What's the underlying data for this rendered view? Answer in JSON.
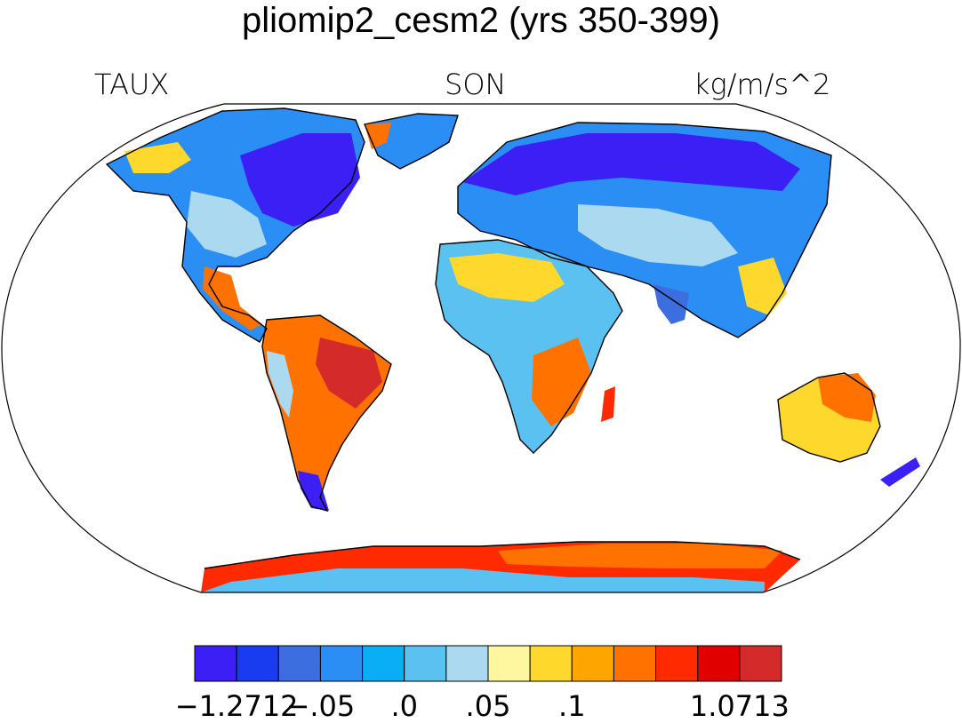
{
  "title": "pliomip2_cesm2 (yrs 350-399)",
  "left_label": "TAUX",
  "center_label": "SON",
  "right_label": "kg/m/s^2",
  "colorbar": {
    "colors": [
      "#3b1ff5",
      "#1a3cf0",
      "#3c6ee0",
      "#2a8ef5",
      "#0aaef5",
      "#5bc1f0",
      "#abdaf0",
      "#fff7a0",
      "#ffd82e",
      "#ffa500",
      "#ff7200",
      "#ff2a00",
      "#e10000",
      "#d42a2a"
    ],
    "labels": [
      "−1.2712",
      "−.05",
      ".0",
      ".05",
      ".1",
      "1.0713"
    ]
  },
  "map": {
    "projection": "Robinson",
    "fill_colors": {
      "strong_negative": "#3b1ff5",
      "negative": "#2a8ef5",
      "weak_negative": "#abdaf0",
      "weak_positive": "#ffd82e",
      "positive": "#ff7200",
      "strong_positive": "#d42a2a"
    }
  }
}
